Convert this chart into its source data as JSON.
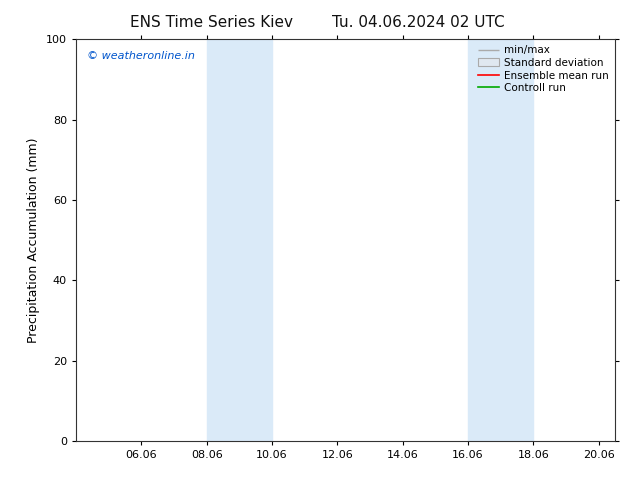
{
  "title_left": "ENS Time Series Kiev",
  "title_right": "Tu. 04.06.2024 02 UTC",
  "ylabel": "Precipitation Accumulation (mm)",
  "ylim": [
    0,
    100
  ],
  "yticks": [
    0,
    20,
    40,
    60,
    80,
    100
  ],
  "xlim": [
    0,
    16.5
  ],
  "xtick_positions": [
    2,
    4,
    6,
    8,
    10,
    12,
    14,
    16
  ],
  "xtick_labels": [
    "06.06",
    "08.06",
    "10.06",
    "12.06",
    "14.06",
    "16.06",
    "18.06",
    "20.06"
  ],
  "shaded_bands": [
    {
      "x_start": 4,
      "x_end": 6
    },
    {
      "x_start": 12,
      "x_end": 14
    }
  ],
  "watermark_text": "© weatheronline.in",
  "watermark_color": "#0055cc",
  "bg_color": "#ffffff",
  "plot_bg_color": "#ffffff",
  "band_color": "#daeaf8",
  "legend_labels": [
    "min/max",
    "Standard deviation",
    "Ensemble mean run",
    "Controll run"
  ],
  "legend_line_colors": [
    "#aaaaaa",
    "#cccccc",
    "#ff0000",
    "#00aa00"
  ],
  "title_fontsize": 11,
  "label_fontsize": 9,
  "tick_fontsize": 8,
  "watermark_fontsize": 8,
  "legend_fontsize": 7.5
}
